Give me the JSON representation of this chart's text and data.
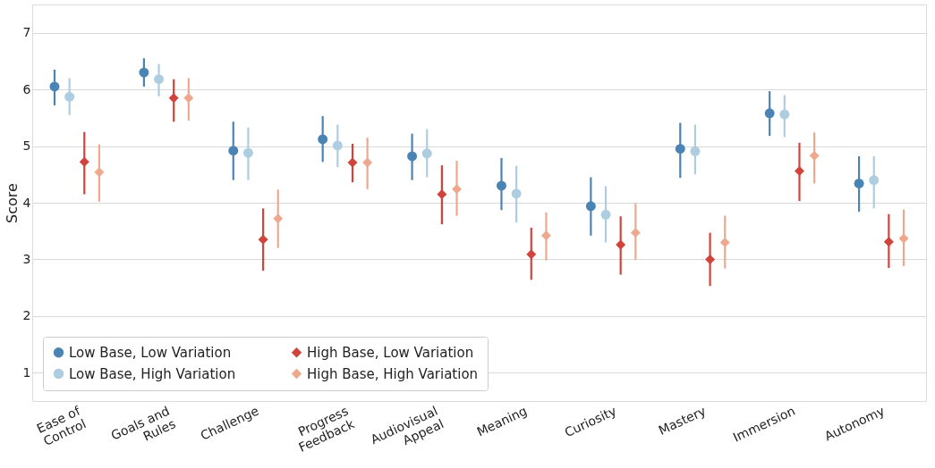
{
  "chart_data": {
    "type": "scatter",
    "ylabel": "Score",
    "categories": [
      "Ease of Control",
      "Goals and Rules",
      "Challenge",
      "Progress Feedback",
      "Audiovisual Appeal",
      "Meaning",
      "Curiosity",
      "Mastery",
      "Immersion",
      "Autonomy"
    ],
    "ylim": [
      0.5,
      7.5
    ],
    "yticks": [
      1,
      2,
      3,
      4,
      5,
      6,
      7
    ],
    "grid": "y",
    "legend": "bottom left",
    "series": [
      {
        "name": "Low Base, Low Variation",
        "color": "#4a84b5",
        "marker": "circle",
        "values": [
          6.05,
          6.3,
          4.92,
          5.12,
          4.82,
          4.3,
          3.94,
          4.95,
          5.58,
          4.34
        ],
        "errors": [
          [
            5.72,
            6.35
          ],
          [
            6.05,
            6.55
          ],
          [
            4.4,
            5.43
          ],
          [
            4.72,
            5.53
          ],
          [
            4.4,
            5.22
          ],
          [
            3.87,
            4.79
          ],
          [
            3.42,
            4.45
          ],
          [
            4.44,
            5.41
          ],
          [
            5.18,
            5.97
          ],
          [
            3.84,
            4.82
          ]
        ]
      },
      {
        "name": "Low Base, High Variation",
        "color": "#aecde1",
        "marker": "circle",
        "values": [
          5.87,
          6.18,
          4.88,
          5.01,
          4.87,
          4.16,
          3.79,
          4.91,
          5.56,
          4.4
        ],
        "errors": [
          [
            5.55,
            6.2
          ],
          [
            5.88,
            6.45
          ],
          [
            4.4,
            5.33
          ],
          [
            4.63,
            5.38
          ],
          [
            4.45,
            5.3
          ],
          [
            3.65,
            4.65
          ],
          [
            3.3,
            4.29
          ],
          [
            4.5,
            5.38
          ],
          [
            5.16,
            5.9
          ],
          [
            3.9,
            4.82
          ]
        ]
      },
      {
        "name": "High Base, Low Variation",
        "color": "#d1443c",
        "marker": "diamond",
        "values": [
          4.72,
          5.85,
          3.35,
          4.71,
          4.15,
          3.09,
          3.26,
          3.0,
          4.56,
          3.31
        ],
        "errors": [
          [
            4.15,
            5.25
          ],
          [
            5.43,
            6.18
          ],
          [
            2.8,
            3.9
          ],
          [
            4.36,
            5.04
          ],
          [
            3.62,
            4.66
          ],
          [
            2.64,
            3.56
          ],
          [
            2.73,
            3.76
          ],
          [
            2.53,
            3.47
          ],
          [
            4.03,
            5.06
          ],
          [
            2.85,
            3.8
          ]
        ]
      },
      {
        "name": "High Base, High Variation",
        "color": "#eea88e",
        "marker": "diamond",
        "values": [
          4.54,
          5.85,
          3.72,
          4.71,
          4.24,
          3.42,
          3.47,
          3.3,
          4.83,
          3.37
        ],
        "errors": [
          [
            4.02,
            5.03
          ],
          [
            5.45,
            6.2
          ],
          [
            3.2,
            4.23
          ],
          [
            4.24,
            5.15
          ],
          [
            3.77,
            4.74
          ],
          [
            2.98,
            3.83
          ],
          [
            2.99,
            3.99
          ],
          [
            2.84,
            3.77
          ],
          [
            4.34,
            5.24
          ],
          [
            2.88,
            3.88
          ]
        ]
      }
    ]
  }
}
